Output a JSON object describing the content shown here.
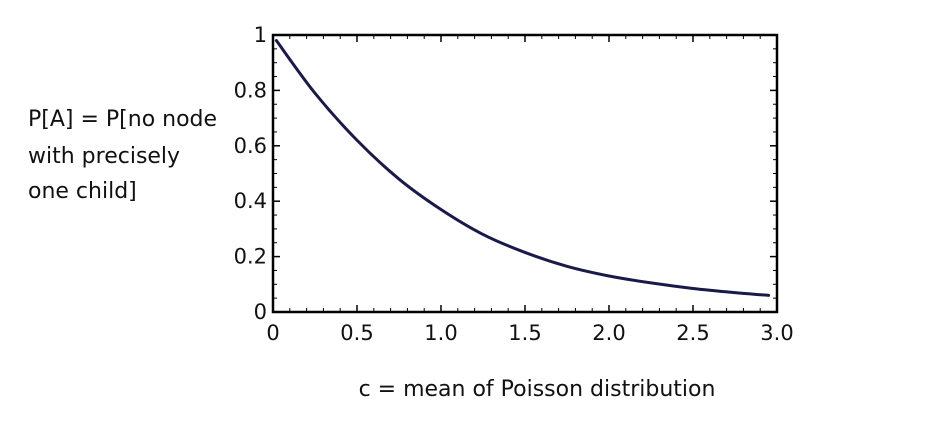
{
  "chart_data": {
    "type": "line",
    "title": "",
    "xlabel": "c = mean of Poisson distribution",
    "ylabel_lines": [
      "P[A] = P[no node",
      "with precisely",
      "one child]"
    ],
    "xlim": [
      0,
      3.0
    ],
    "ylim": [
      0,
      1
    ],
    "x_ticks": [
      0,
      0.5,
      1.0,
      1.5,
      2.0,
      2.5,
      3.0
    ],
    "x_tick_labels": [
      "0",
      "0.5",
      "1.0",
      "1.5",
      "2.0",
      "2.5",
      "3.0"
    ],
    "y_ticks": [
      0,
      0.2,
      0.4,
      0.6,
      0.8,
      1
    ],
    "y_tick_labels": [
      "0",
      "0.2",
      "0.4",
      "0.6",
      "0.8",
      "1"
    ],
    "grid": false,
    "line_color": "#1a1a4a",
    "series": [
      {
        "x": [
          0.02,
          0.25,
          0.5,
          0.75,
          1.0,
          1.25,
          1.5,
          1.75,
          2.0,
          2.25,
          2.5,
          2.75,
          2.95
        ],
        "values": [
          0.98,
          0.79,
          0.62,
          0.48,
          0.37,
          0.28,
          0.215,
          0.165,
          0.13,
          0.105,
          0.085,
          0.07,
          0.06
        ]
      }
    ]
  }
}
